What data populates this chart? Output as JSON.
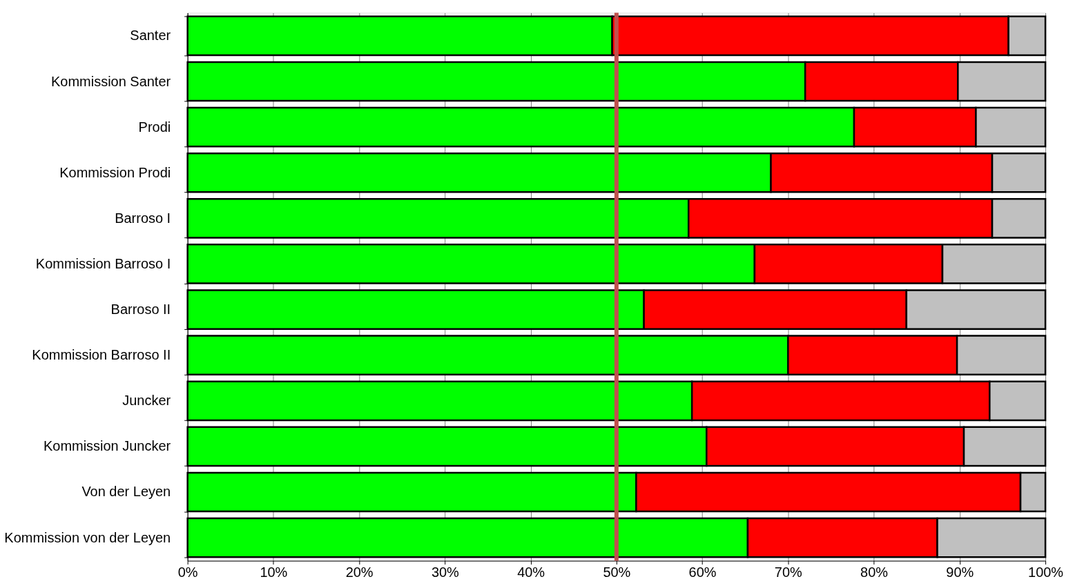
{
  "chart_data": {
    "type": "bar",
    "orientation": "horizontal",
    "stacked": true,
    "categories": [
      "Santer",
      "Kommission Santer",
      "Prodi",
      "Kommission Prodi",
      "Barroso I",
      "Kommission Barroso I",
      "Barroso II",
      "Kommission Barroso II",
      "Juncker",
      "Kommission Juncker",
      "Von der Leyen",
      "Kommission von der Leyen"
    ],
    "series": [
      {
        "color": "#00ff00",
        "values": [
          49.5,
          72.0,
          77.7,
          68.0,
          58.4,
          66.1,
          53.2,
          70.0,
          58.8,
          60.5,
          52.3,
          65.3
        ]
      },
      {
        "color": "#ff0000",
        "values": [
          46.2,
          17.8,
          14.2,
          25.8,
          35.4,
          21.9,
          30.6,
          19.7,
          34.7,
          30.0,
          44.8,
          22.1
        ]
      },
      {
        "color": "#c0c0c0",
        "values": [
          4.3,
          10.2,
          8.1,
          6.2,
          6.2,
          12.0,
          16.2,
          10.3,
          6.5,
          9.5,
          2.9,
          12.6
        ]
      }
    ],
    "xlim": [
      0,
      100
    ],
    "xticks": [
      {
        "value": 0,
        "label": "0%"
      },
      {
        "value": 10,
        "label": "10%"
      },
      {
        "value": 20,
        "label": "20%"
      },
      {
        "value": 30,
        "label": "30%"
      },
      {
        "value": 40,
        "label": "40%"
      },
      {
        "value": 50,
        "label": "50%"
      },
      {
        "value": 60,
        "label": "60%"
      },
      {
        "value": 70,
        "label": "70%"
      },
      {
        "value": 80,
        "label": "80%"
      },
      {
        "value": 90,
        "label": "90%"
      },
      {
        "value": 100,
        "label": "100%"
      }
    ],
    "grid": "x",
    "ref_lines": [
      {
        "axis": "x",
        "value": 50,
        "color": "#c0504d"
      }
    ]
  }
}
